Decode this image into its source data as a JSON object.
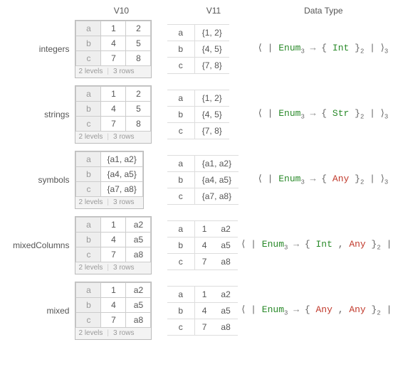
{
  "headers": {
    "v10": "V10",
    "v11": "V11",
    "type": "Data Type"
  },
  "footer": {
    "levels": "2 levels",
    "rows": "3 rows"
  },
  "sig": {
    "lba": "⟨",
    "bar": "|",
    "rba": "⟩",
    "arrow": "→",
    "lcb": "{",
    "rcb": "}",
    "comma": ",",
    "enum": "Enum",
    "int": "Int",
    "str": "Str",
    "any": "Any",
    "s3": "3",
    "s2": "2"
  },
  "rows": {
    "integers": {
      "label": "integers",
      "keys": [
        "a",
        "b",
        "c"
      ],
      "v10": [
        [
          "1",
          "2"
        ],
        [
          "4",
          "5"
        ],
        [
          "7",
          "8"
        ]
      ],
      "v11": [
        "{1, 2}",
        "{4, 5}",
        "{7, 8}"
      ],
      "inner": [
        {
          "t": "int"
        }
      ]
    },
    "strings": {
      "label": "strings",
      "keys": [
        "a",
        "b",
        "c"
      ],
      "v10": [
        [
          "1",
          "2"
        ],
        [
          "4",
          "5"
        ],
        [
          "7",
          "8"
        ]
      ],
      "v11": [
        "{1, 2}",
        "{4, 5}",
        "{7, 8}"
      ],
      "inner": [
        {
          "t": "str"
        }
      ]
    },
    "symbols": {
      "label": "symbols",
      "keys": [
        "a",
        "b",
        "c"
      ],
      "v10": [
        [
          "{a1, a2}"
        ],
        [
          "{a4, a5}"
        ],
        [
          "{a7, a8}"
        ]
      ],
      "v11": [
        "{a1, a2}",
        "{a4, a5}",
        "{a7, a8}"
      ],
      "inner": [
        {
          "t": "any"
        }
      ]
    },
    "mixedColumns": {
      "label": "mixedColumns",
      "keys": [
        "a",
        "b",
        "c"
      ],
      "v10": [
        [
          "1",
          "a2"
        ],
        [
          "4",
          "a5"
        ],
        [
          "7",
          "a8"
        ]
      ],
      "v11": [
        [
          "1",
          "a2"
        ],
        [
          "4",
          "a5"
        ],
        [
          "7",
          "a8"
        ]
      ],
      "inner": [
        {
          "t": "int"
        },
        {
          "t": "any"
        }
      ]
    },
    "mixed": {
      "label": "mixed",
      "keys": [
        "a",
        "b",
        "c"
      ],
      "v10": [
        [
          "1",
          "a2"
        ],
        [
          "4",
          "a5"
        ],
        [
          "7",
          "a8"
        ]
      ],
      "v11": [
        [
          "1",
          "a2"
        ],
        [
          "4",
          "a5"
        ],
        [
          "7",
          "a8"
        ]
      ],
      "inner": [
        {
          "t": "any"
        },
        {
          "t": "any"
        }
      ]
    }
  },
  "order": [
    "integers",
    "strings",
    "symbols",
    "mixedColumns",
    "mixed"
  ]
}
